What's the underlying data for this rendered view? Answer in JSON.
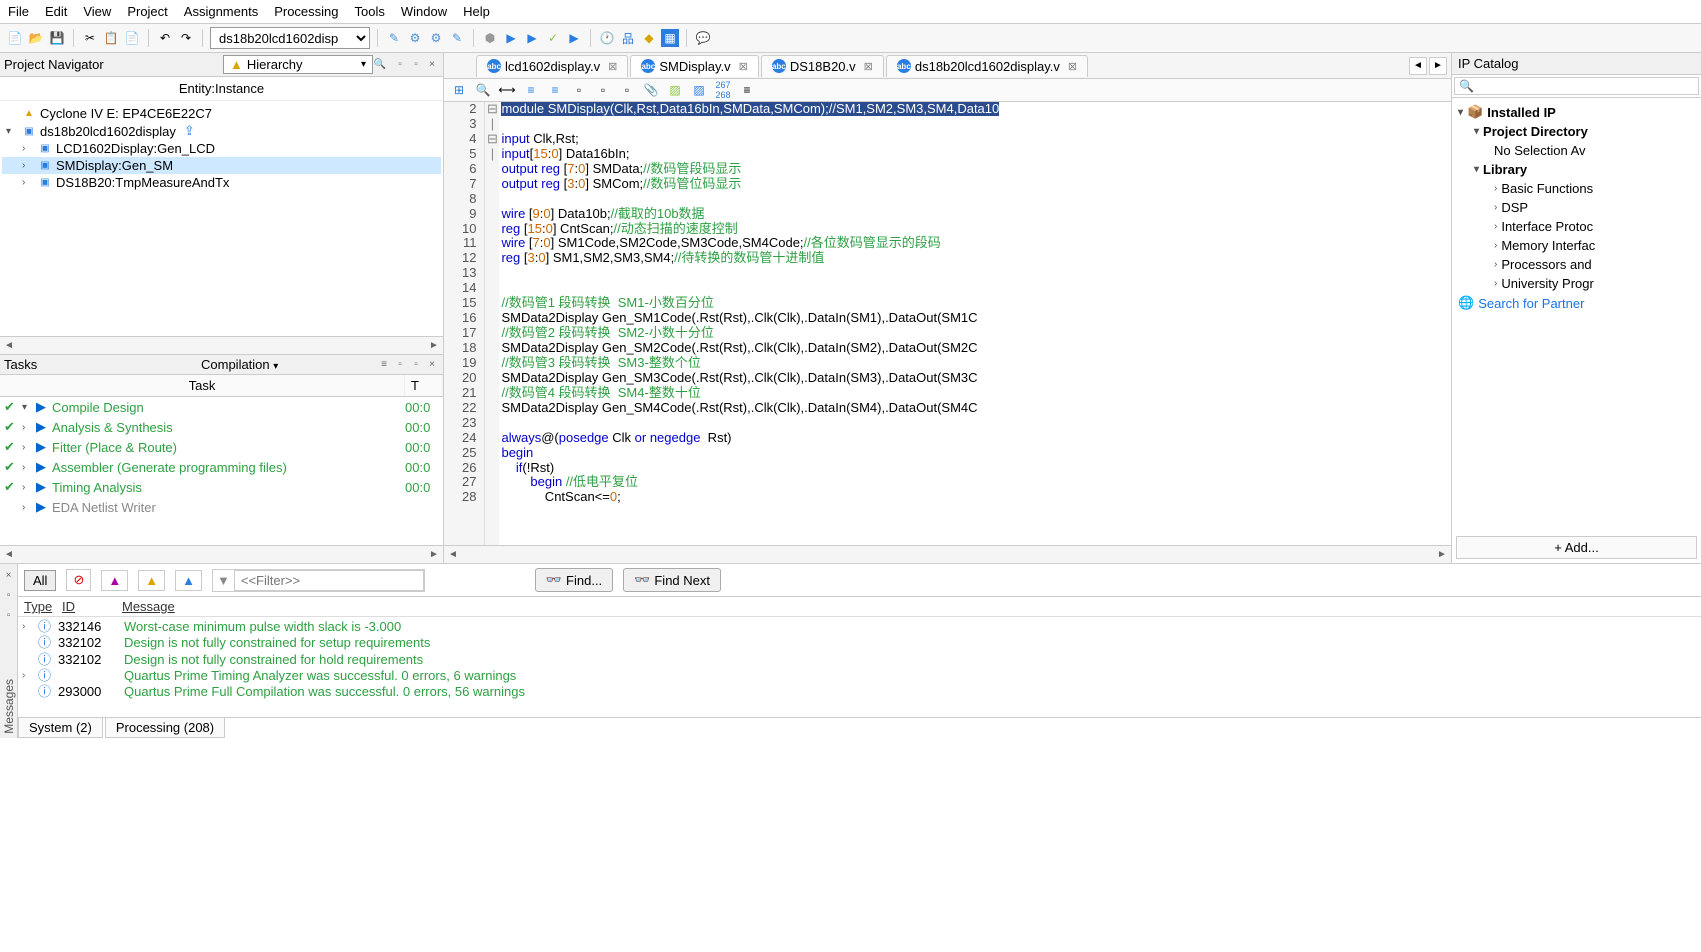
{
  "menu": [
    "File",
    "Edit",
    "View",
    "Project",
    "Assignments",
    "Processing",
    "Tools",
    "Window",
    "Help"
  ],
  "toolbar_combo": "ds18b20lcd1602disp",
  "nav": {
    "title": "Project Navigator",
    "mode_icon": "▲",
    "mode": "Hierarchy",
    "entity_label": "Entity:Instance",
    "items": [
      {
        "indent": 0,
        "icon": "▲",
        "iconColor": "#d9a400",
        "label": "Cyclone IV E: EP4CE6E22C7"
      },
      {
        "indent": 0,
        "chev": "▾",
        "icon": "▣",
        "iconColor": "#2a7de1",
        "label": "ds18b20lcd1602display",
        "selected": false,
        "extra": "⇪"
      },
      {
        "indent": 1,
        "chev": "›",
        "icon": "▣",
        "iconColor": "#2a7de1",
        "label": "LCD1602Display:Gen_LCD"
      },
      {
        "indent": 1,
        "chev": "›",
        "icon": "▣",
        "iconColor": "#2a7de1",
        "label": "SMDisplay:Gen_SM",
        "selected": true
      },
      {
        "indent": 1,
        "chev": "›",
        "icon": "▣",
        "iconColor": "#2a7de1",
        "label": "DS18B20:TmpMeasureAndTx"
      }
    ]
  },
  "tasks": {
    "title": "Tasks",
    "mode": "Compilation",
    "header_task": "Task",
    "header_time": "T",
    "rows": [
      {
        "check": true,
        "chev": "▾",
        "name": "Compile Design",
        "t": "00:0",
        "link": true
      },
      {
        "check": true,
        "chev": "›",
        "name": "Analysis & Synthesis",
        "t": "00:0",
        "link": true
      },
      {
        "check": true,
        "chev": "›",
        "name": "Fitter (Place & Route)",
        "t": "00:0",
        "link": true
      },
      {
        "check": true,
        "chev": "›",
        "name": "Assembler (Generate programming files)",
        "t": "00:0",
        "link": true
      },
      {
        "check": true,
        "chev": "›",
        "name": "Timing Analysis",
        "t": "00:0",
        "link": true
      },
      {
        "check": false,
        "chev": "›",
        "name": "EDA Netlist Writer",
        "t": "",
        "link": false
      }
    ]
  },
  "tabs": [
    {
      "label": "lcd1602display.v",
      "active": false
    },
    {
      "label": "SMDisplay.v",
      "active": true
    },
    {
      "label": "DS18B20.v",
      "active": false
    },
    {
      "label": "ds18b20lcd1602display.v",
      "active": false
    }
  ],
  "code": {
    "start": 2,
    "lines": [
      {
        "n": 2,
        "html": "<span class='hl-module'>module SMDisplay(Clk,Rst,Data16bIn,SMData,SMCom);//SM1,SM2,SM3,SM4,Data10</span>"
      },
      {
        "n": 3,
        "html": ""
      },
      {
        "n": 4,
        "html": "<span class='kw-blue'>input</span> Clk,Rst;"
      },
      {
        "n": 5,
        "html": "<span class='kw-blue'>input</span>[<span class='kw-orange'>15</span>:<span class='kw-orange'>0</span>] Data16bIn;"
      },
      {
        "n": 6,
        "html": "<span class='kw-blue'>output</span> <span class='kw-blue'>reg</span> [<span class='kw-orange'>7</span>:<span class='kw-orange'>0</span>] SMData;<span class='c-green'>//数码管段码显示</span>"
      },
      {
        "n": 7,
        "html": "<span class='kw-blue'>output</span> <span class='kw-blue'>reg</span> [<span class='kw-orange'>3</span>:<span class='kw-orange'>0</span>] SMCom;<span class='c-green'>//数码管位码显示</span>"
      },
      {
        "n": 8,
        "html": ""
      },
      {
        "n": 9,
        "html": "<span class='kw-blue'>wire</span> [<span class='kw-orange'>9</span>:<span class='kw-orange'>0</span>] Data10b;<span class='c-green'>//截取的10b数据</span>"
      },
      {
        "n": 10,
        "html": "<span class='kw-blue'>reg</span> [<span class='kw-orange'>15</span>:<span class='kw-orange'>0</span>] CntScan;<span class='c-green'>//动态扫描的速度控制</span>"
      },
      {
        "n": 11,
        "html": "<span class='kw-blue'>wire</span> [<span class='kw-orange'>7</span>:<span class='kw-orange'>0</span>] SM1Code,SM2Code,SM3Code,SM4Code;<span class='c-green'>//各位数码管显示的段码</span>"
      },
      {
        "n": 12,
        "html": "<span class='kw-blue'>reg</span> [<span class='kw-orange'>3</span>:<span class='kw-orange'>0</span>] SM1,SM2,SM3,SM4;<span class='c-green'>//待转换的数码管十进制值</span>"
      },
      {
        "n": 13,
        "html": ""
      },
      {
        "n": 14,
        "html": ""
      },
      {
        "n": 15,
        "html": "<span class='c-green'>//数码管1 段码转换  SM1-小数百分位</span>"
      },
      {
        "n": 16,
        "html": "SMData2Display Gen_SM1Code(.Rst(Rst),.Clk(Clk),.DataIn(SM1),.DataOut(SM1C"
      },
      {
        "n": 17,
        "html": "<span class='c-green'>//数码管2 段码转换  SM2-小数十分位</span>"
      },
      {
        "n": 18,
        "html": "SMData2Display Gen_SM2Code(.Rst(Rst),.Clk(Clk),.DataIn(SM2),.DataOut(SM2C"
      },
      {
        "n": 19,
        "html": "<span class='c-green'>//数码管3 段码转换  SM3-整数个位</span>"
      },
      {
        "n": 20,
        "html": "SMData2Display Gen_SM3Code(.Rst(Rst),.Clk(Clk),.DataIn(SM3),.DataOut(SM3C"
      },
      {
        "n": 21,
        "html": "<span class='c-green'>//数码管4 段码转换  SM4-整数十位</span>"
      },
      {
        "n": 22,
        "html": "SMData2Display Gen_SM4Code(.Rst(Rst),.Clk(Clk),.DataIn(SM4),.DataOut(SM4C"
      },
      {
        "n": 23,
        "html": ""
      },
      {
        "n": 24,
        "html": "<span class='kw-blue'>always</span>@(<span class='kw-blue'>posedge</span> Clk <span class='kw-blue'>or</span> <span class='kw-blue'>negedge</span>  Rst)"
      },
      {
        "n": 25,
        "fold": "⊟",
        "html": "<span class='kw-blue'>begin</span>"
      },
      {
        "n": 26,
        "fold": "|",
        "html": "    <span class='kw-blue'>if</span>(!Rst)"
      },
      {
        "n": 27,
        "fold": "⊟",
        "html": "        <span class='kw-blue'>begin</span> <span class='c-green'>//低电平复位</span>"
      },
      {
        "n": 28,
        "fold": "|",
        "html": "            CntScan<=<span class='kw-orange'>0</span>;"
      }
    ]
  },
  "ip": {
    "title": "IP Catalog",
    "search_placeholder": "🔍",
    "tree": [
      {
        "chev": "▾",
        "icon": "📦",
        "label": "Installed IP",
        "bold": true,
        "i": 0
      },
      {
        "chev": "▾",
        "label": "Project Directory",
        "bold": true,
        "i": 1
      },
      {
        "label": "No Selection Av",
        "i": 2
      },
      {
        "chev": "▾",
        "label": "Library",
        "bold": true,
        "i": 1
      },
      {
        "chev": "›",
        "label": "Basic Functions",
        "i": 2
      },
      {
        "chev": "›",
        "label": "DSP",
        "i": 2
      },
      {
        "chev": "›",
        "label": "Interface Protoc",
        "i": 2
      },
      {
        "chev": "›",
        "label": "Memory Interfac",
        "i": 2
      },
      {
        "chev": "›",
        "label": "Processors and",
        "i": 2
      },
      {
        "chev": "›",
        "label": "University Progr",
        "i": 2
      },
      {
        "icon": "🌐",
        "label": "Search for Partner",
        "i": 0,
        "color": "#1a73e8"
      }
    ],
    "add": "+  Add..."
  },
  "messages": {
    "all": "All",
    "filter_placeholder": "<<Filter>>",
    "find": "Find...",
    "find_next": "Find Next",
    "head_type": "Type",
    "head_id": "ID",
    "head_msg": "Message",
    "rows": [
      {
        "chev": "›",
        "id": "332146",
        "txt": "Worst-case minimum pulse width slack is -3.000"
      },
      {
        "chev": "",
        "id": "332102",
        "txt": "Design is not fully constrained for setup requirements"
      },
      {
        "chev": "",
        "id": "332102",
        "txt": "Design is not fully constrained for hold requirements"
      },
      {
        "chev": "›",
        "id": "",
        "txt": "Quartus Prime Timing Analyzer was successful. 0 errors, 6 warnings"
      },
      {
        "chev": "",
        "id": "293000",
        "txt": "Quartus Prime Full Compilation was successful. 0 errors, 56 warnings"
      }
    ],
    "tabs": [
      "System (2)",
      "Processing (208)"
    ],
    "vert": "Messages"
  }
}
